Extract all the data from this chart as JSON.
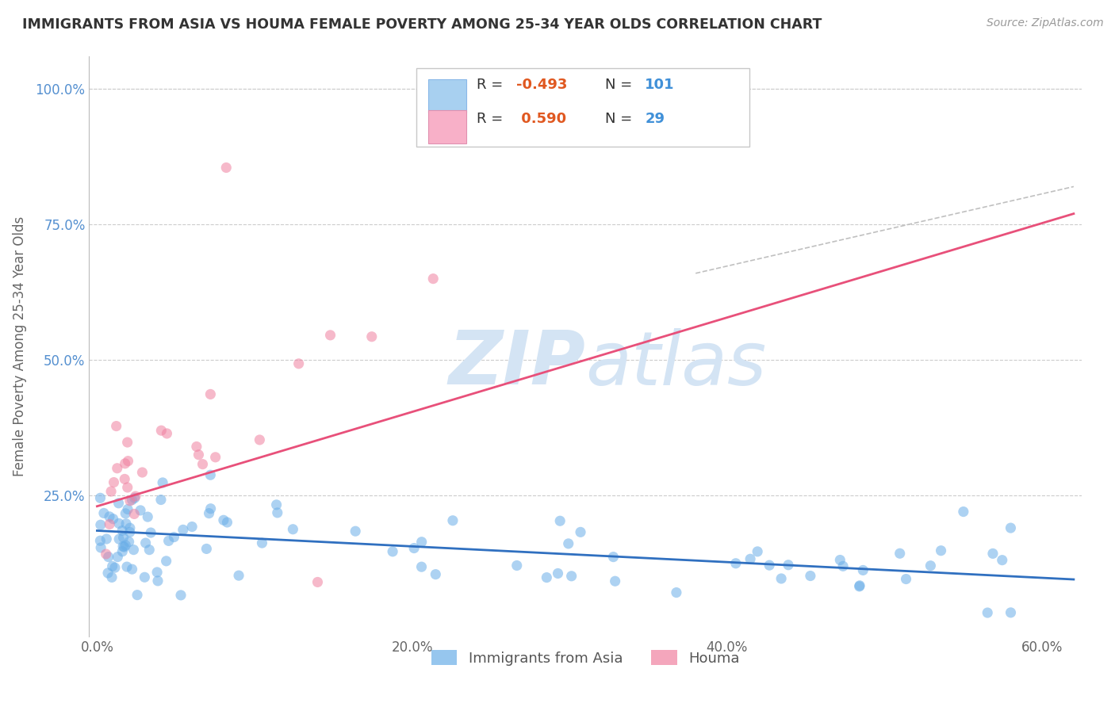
{
  "title": "IMMIGRANTS FROM ASIA VS HOUMA FEMALE POVERTY AMONG 25-34 YEAR OLDS CORRELATION CHART",
  "source": "Source: ZipAtlas.com",
  "ylabel": "Female Poverty Among 25-34 Year Olds",
  "xlim": [
    -0.005,
    0.625
  ],
  "ylim": [
    -0.01,
    1.06
  ],
  "xtick_vals": [
    0.0,
    0.2,
    0.4,
    0.6
  ],
  "xtick_labels": [
    "0.0%",
    "20.0%",
    "40.0%",
    "60.0%"
  ],
  "ytick_vals": [
    0.25,
    0.5,
    0.75,
    1.0
  ],
  "ytick_labels": [
    "25.0%",
    "50.0%",
    "75.0%",
    "100.0%"
  ],
  "blue_R": "-0.493",
  "blue_N": "101",
  "pink_R": "0.590",
  "pink_N": "29",
  "legend_label_blue": "Immigrants from Asia",
  "legend_label_pink": "Houma",
  "blue_scatter_color": "#6aaee8",
  "pink_scatter_color": "#f080a0",
  "blue_line_color": "#3070c0",
  "pink_line_color": "#e8507a",
  "grey_line_color": "#c0c0c0",
  "R_value_color": "#e05820",
  "N_value_color": "#4090d8",
  "legend_box_blue": "#a8d0f0",
  "legend_box_pink": "#f8b0c8",
  "watermark_color": "#d4e4f4",
  "background_color": "#ffffff",
  "title_color": "#333333",
  "source_color": "#999999",
  "ylabel_color": "#666666",
  "ytick_color": "#5590d0",
  "xtick_color": "#666666",
  "grid_color": "#cccccc",
  "blue_line_x0": 0.0,
  "blue_line_y0": 0.185,
  "blue_line_x1": 0.62,
  "blue_line_y1": 0.095,
  "pink_line_x0": 0.0,
  "pink_line_y0": 0.23,
  "pink_line_x1": 0.62,
  "pink_line_y1": 0.77,
  "grey_line_x0": 0.38,
  "grey_line_y0": 0.66,
  "grey_line_x1": 0.62,
  "grey_line_y1": 0.82
}
